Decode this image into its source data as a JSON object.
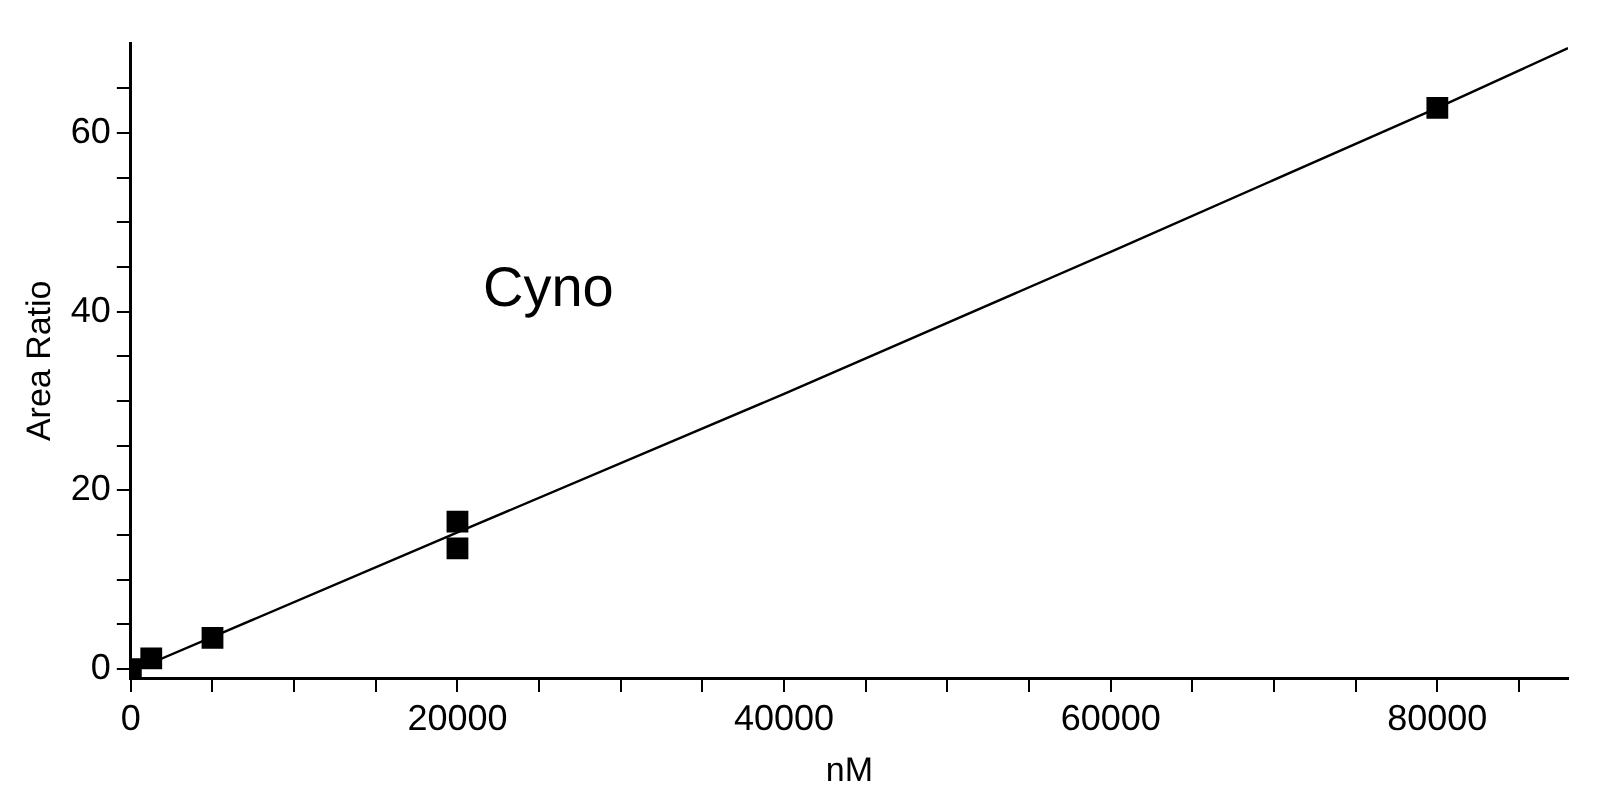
{
  "chart_data": {
    "type": "scatter",
    "xlabel": "nM",
    "ylabel": "Area Ratio",
    "annotations": [
      "Cyno"
    ],
    "xlim": [
      0,
      88000
    ],
    "ylim": [
      -1,
      70
    ],
    "xticks": [
      0,
      {
        "value": 5000,
        "label": null
      },
      {
        "value": 10000,
        "label": null
      },
      {
        "value": 15000,
        "label": null
      },
      20000,
      {
        "value": 25000,
        "label": null
      },
      {
        "value": 30000,
        "label": null
      },
      {
        "value": 35000,
        "label": null
      },
      40000,
      {
        "value": 45000,
        "label": null
      },
      {
        "value": 50000,
        "label": null
      },
      {
        "value": 55000,
        "label": null
      },
      60000,
      {
        "value": 65000,
        "label": null
      },
      {
        "value": 70000,
        "label": null
      },
      {
        "value": 75000,
        "label": null
      },
      80000,
      {
        "value": 85000,
        "label": null
      }
    ],
    "yticks": [
      0,
      {
        "value": 5,
        "label": null
      },
      {
        "value": 10,
        "label": null
      },
      {
        "value": 15,
        "label": null
      },
      20,
      {
        "value": 25,
        "label": null
      },
      {
        "value": 30,
        "label": null
      },
      {
        "value": 35,
        "label": null
      },
      40,
      {
        "value": 45,
        "label": null
      },
      {
        "value": 50,
        "label": null
      },
      {
        "value": 55,
        "label": null
      },
      60,
      {
        "value": 65,
        "label": null
      }
    ],
    "grid": false,
    "marker": "square",
    "line_style": "solid",
    "series": [
      {
        "color": "#000000",
        "x": [
          0,
          1250,
          5000,
          20000,
          20000,
          80000
        ],
        "values": [
          0,
          1.2,
          3.5,
          13.5,
          16.5,
          62.8
        ]
      },
      {
        "type": "line",
        "color": "#000000",
        "marker": "none",
        "x": [
          0,
          20000,
          40000,
          60000,
          80000,
          88000
        ],
        "values": [
          -0.3,
          15.3,
          30.8,
          46.7,
          62.8,
          69.5
        ]
      }
    ]
  }
}
